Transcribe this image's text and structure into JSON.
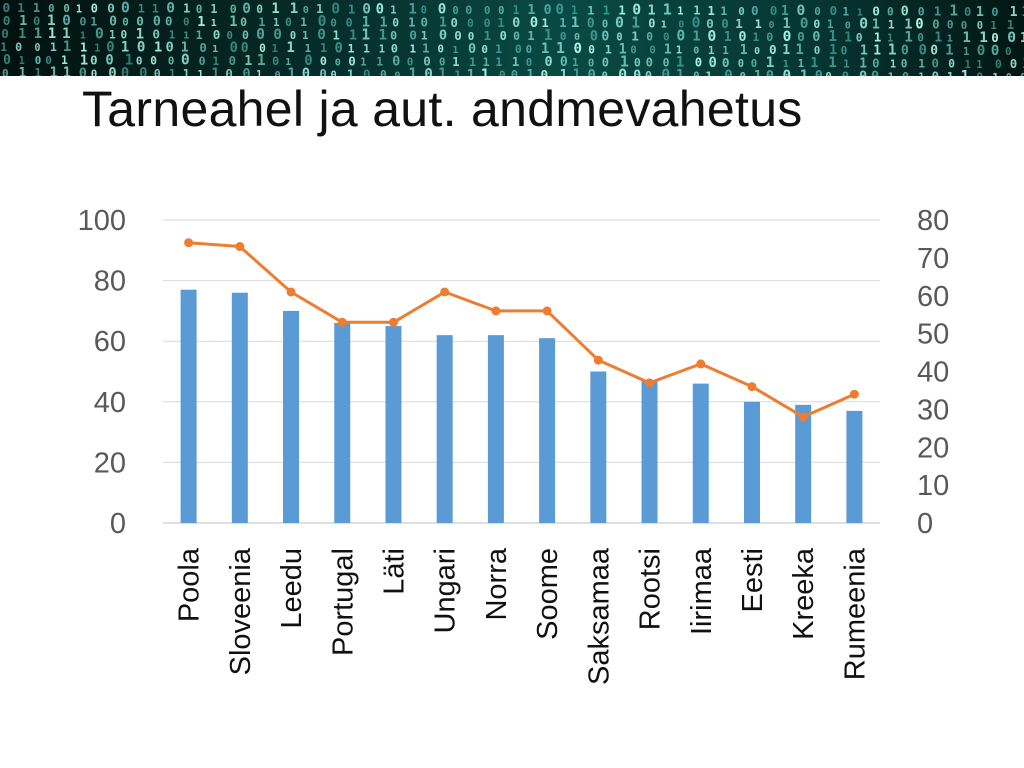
{
  "slide": {
    "title": "Tarneahel ja aut. andmevahetus",
    "banner_icon": "binary-code-banner"
  },
  "colors": {
    "bar": "#5b9bd5",
    "line": "#ed7d31",
    "grid": "#d9d9d9",
    "axis_text": "#595959"
  },
  "chart_data": {
    "type": "bar",
    "title": "",
    "categories": [
      "Poola",
      "Sloveenia",
      "Leedu",
      "Portugal",
      "Läti",
      "Ungari",
      "Norra",
      "Soome",
      "Saksamaa",
      "Rootsi",
      "Iirimaa",
      "Eesti",
      "Kreeka",
      "Rumeenia"
    ],
    "series": [
      {
        "type": "bar",
        "axis": "left",
        "values": [
          77,
          76,
          70,
          66,
          65,
          62,
          62,
          61,
          50,
          47,
          46,
          40,
          39,
          37
        ]
      },
      {
        "type": "line",
        "axis": "right",
        "values": [
          74,
          73,
          61,
          53,
          53,
          61,
          56,
          56,
          43,
          37,
          42,
          36,
          28,
          34
        ]
      }
    ],
    "y_left": {
      "ylim": [
        0,
        100
      ],
      "ticks": [
        0,
        20,
        40,
        60,
        80,
        100
      ]
    },
    "y_right": {
      "ylim": [
        0,
        80
      ],
      "ticks": [
        0,
        10,
        20,
        30,
        40,
        50,
        60,
        70,
        80
      ]
    },
    "xlabel": "",
    "ylabel": "",
    "grid": true,
    "legend": "none",
    "x_label_rotation": "vertical"
  }
}
